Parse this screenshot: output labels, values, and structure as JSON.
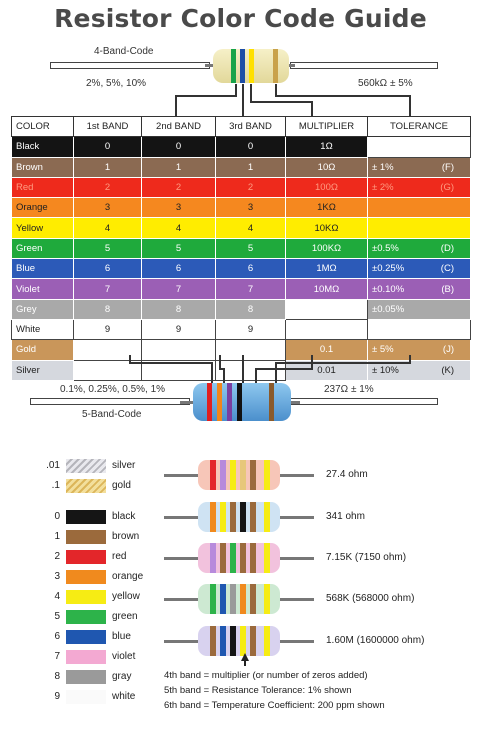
{
  "title": "Resistor Color Code Guide",
  "four_band": {
    "label": "4-Band-Code",
    "left_caption": "2%, 5%, 10%",
    "right_caption": "560kΩ ± 5%",
    "bands": [
      "#18a34a",
      "#1d4ea6",
      "#ffe000",
      "#c9a24a"
    ]
  },
  "five_band": {
    "label": "5-Band-Code",
    "left_caption": "0.1%, 0.25%, 0.5%, 1%",
    "right_caption": "237Ω ± 1%",
    "bands": [
      "#e01f1f",
      "#f2861b",
      "#7a3fa0",
      "#111111",
      "#8a5a2b"
    ]
  },
  "table": {
    "headers": [
      "COLOR",
      "1st BAND",
      "2nd BAND",
      "3rd BAND",
      "MULTIPLIER",
      "TOLERANCE"
    ],
    "rows": [
      {
        "name": "Black",
        "bg": "#141414",
        "fg": "#ffffff",
        "b1": "0",
        "b2": "0",
        "b3": "0",
        "mult": "1Ω",
        "tol": "",
        "code": ""
      },
      {
        "name": "Brown",
        "bg": "#8b6a52",
        "fg": "#ffffff",
        "b1": "1",
        "b2": "1",
        "b3": "1",
        "mult": "10Ω",
        "tol": "±   1%",
        "code": "(F)"
      },
      {
        "name": "Red",
        "bg": "#ee2a1c",
        "fg": "#ff9a80",
        "b1": "2",
        "b2": "2",
        "b3": "2",
        "mult": "100Ω",
        "tol": "±   2%",
        "code": "(G)"
      },
      {
        "name": "Orange",
        "bg": "#f5881f",
        "fg": "#222222",
        "b1": "3",
        "b2": "3",
        "b3": "3",
        "mult": "1KΩ",
        "tol": "",
        "code": ""
      },
      {
        "name": "Yellow",
        "bg": "#ffed00",
        "fg": "#222222",
        "b1": "4",
        "b2": "4",
        "b3": "4",
        "mult": "10KΩ",
        "tol": "",
        "code": ""
      },
      {
        "name": "Green",
        "bg": "#1faa3c",
        "fg": "#ffffff",
        "b1": "5",
        "b2": "5",
        "b3": "5",
        "mult": "100KΩ",
        "tol": "±0.5%",
        "code": "(D)"
      },
      {
        "name": "Blue",
        "bg": "#2c5ab8",
        "fg": "#ffffff",
        "b1": "6",
        "b2": "6",
        "b3": "6",
        "mult": "1MΩ",
        "tol": "±0.25%",
        "code": "(C)"
      },
      {
        "name": "Violet",
        "bg": "#9b5fb5",
        "fg": "#ffffff",
        "b1": "7",
        "b2": "7",
        "b3": "7",
        "mult": "10MΩ",
        "tol": "±0.10%",
        "code": "(B)"
      },
      {
        "name": "Grey",
        "bg": "#a9a9a9",
        "fg": "#ffffff",
        "b1": "8",
        "b2": "8",
        "b3": "8",
        "mult": "",
        "tol": "±0.05%",
        "code": ""
      },
      {
        "name": "White",
        "bg": "#ffffff",
        "fg": "#222222",
        "b1": "9",
        "b2": "9",
        "b3": "9",
        "mult": "",
        "tol": "",
        "code": ""
      },
      {
        "name": "Gold",
        "bg": "#c9965a",
        "fg": "#ffffff",
        "b1": "",
        "b2": "",
        "b3": "",
        "mult": "0.1",
        "tol": "±   5%",
        "code": "(J)",
        "gold": true
      },
      {
        "name": "Silver",
        "bg": "#d5d8de",
        "fg": "#222222",
        "b1": "",
        "b2": "",
        "b3": "",
        "mult": "0.01",
        "tol": "±  10%",
        "code": "(K)",
        "silver": true
      }
    ]
  },
  "legend": [
    {
      "num": ".01",
      "name": "silver",
      "color": "#c8c8cc"
    },
    {
      "num": ".1",
      "name": "gold",
      "color": "#e7c77a"
    },
    {
      "num": "0",
      "name": "black",
      "color": "#151515"
    },
    {
      "num": "1",
      "name": "brown",
      "color": "#9b6a3c"
    },
    {
      "num": "2",
      "name": "red",
      "color": "#e3262a"
    },
    {
      "num": "3",
      "name": "orange",
      "color": "#f08a1e"
    },
    {
      "num": "4",
      "name": "yellow",
      "color": "#f6ec14"
    },
    {
      "num": "5",
      "name": "green",
      "color": "#2db34a"
    },
    {
      "num": "6",
      "name": "blue",
      "color": "#1f57b0"
    },
    {
      "num": "7",
      "name": "violet",
      "color": "#f3a9d2"
    },
    {
      "num": "8",
      "name": "gray",
      "color": "#9a9a9a"
    },
    {
      "num": "9",
      "name": "white",
      "color": "#ffffff"
    }
  ],
  "examples": [
    {
      "value": "27.4 ohm",
      "bands": [
        "#e3262a",
        "#b78adc",
        "#f6ec14",
        "#e7c77a",
        "#9b6a3c",
        "#f6ec14"
      ]
    },
    {
      "value": "341 ohm",
      "bands": [
        "#f08a1e",
        "#f6ec14",
        "#9b6a3c",
        "#151515",
        "#9b6a3c",
        "#f6ec14"
      ]
    },
    {
      "value": "7.15K (7150 ohm)",
      "bands": [
        "#b78adc",
        "#9b6a3c",
        "#2db34a",
        "#9b6a3c",
        "#9b6a3c",
        "#f6ec14"
      ]
    },
    {
      "value": "568K (568000 ohm)",
      "bands": [
        "#2db34a",
        "#1f57b0",
        "#9a9a9a",
        "#f08a1e",
        "#9b6a3c",
        "#f6ec14"
      ]
    },
    {
      "value": "1.60M (1600000 ohm)",
      "bands": [
        "#9b6a3c",
        "#1f57b0",
        "#151515",
        "#f6ec14",
        "#9b6a3c",
        "#f6ec14"
      ]
    }
  ],
  "notes": [
    "4th band = multiplier (or number of zeros added)",
    "5th band = Resistance Tolerance:  1% shown",
    "6th band = Temperature Coefficient:  200 ppm shown"
  ]
}
